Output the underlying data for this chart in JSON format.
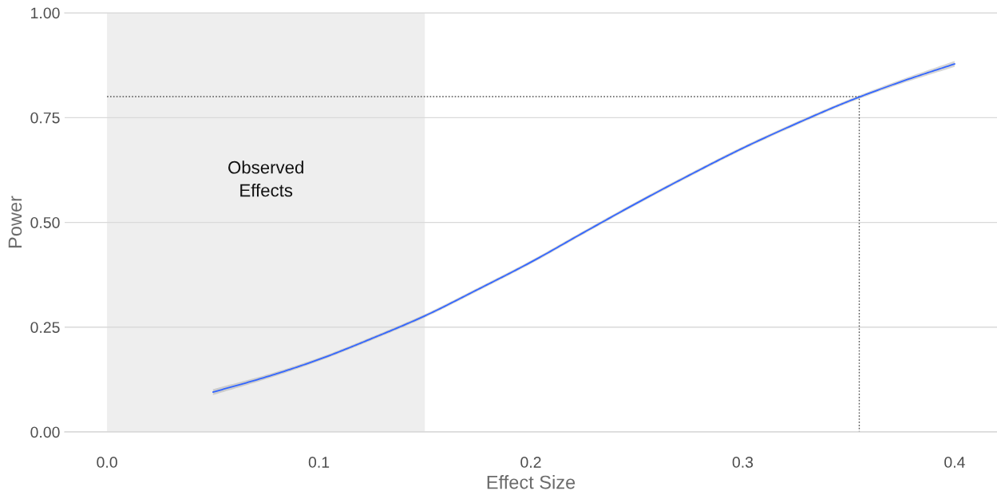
{
  "chart_data": {
    "type": "line",
    "xlabel": "Effect Size",
    "ylabel": "Power",
    "xlim": [
      -0.02,
      0.42
    ],
    "ylim": [
      0,
      1
    ],
    "xticks": [
      {
        "value": 0,
        "label": "0.0"
      },
      0.1,
      0.2,
      0.3,
      0.4
    ],
    "yticks": [
      {
        "value": 0,
        "label": "0.00"
      },
      0.25,
      {
        "value": 0.5,
        "label": "0.50"
      },
      0.75,
      {
        "value": 1,
        "label": "1.00"
      }
    ],
    "grid": "y",
    "bands": [
      {
        "axis": "x",
        "from": 0,
        "to": 0.15,
        "label": "Observed\nEffects",
        "color": "#eeeeee"
      }
    ],
    "series": [
      {
        "color": "#3366ff",
        "x": [
          0.05,
          0.075,
          0.1,
          0.125,
          0.15,
          0.175,
          0.2,
          0.225,
          0.25,
          0.275,
          0.3,
          0.325,
          0.35,
          0.375,
          0.4
        ],
        "values": [
          0.095,
          0.131,
          0.173,
          0.223,
          0.277,
          0.34,
          0.405,
          0.476,
          0.546,
          0.613,
          0.677,
          0.735,
          0.789,
          0.836,
          0.878
        ],
        "lower": [
          0.088,
          0.126,
          0.169,
          0.219,
          0.273,
          0.336,
          0.401,
          0.472,
          0.542,
          0.609,
          0.673,
          0.731,
          0.785,
          0.831,
          0.871
        ],
        "upper": [
          0.102,
          0.136,
          0.177,
          0.227,
          0.281,
          0.344,
          0.409,
          0.48,
          0.55,
          0.617,
          0.681,
          0.739,
          0.793,
          0.841,
          0.885
        ]
      },
      {
        "color": "#555555",
        "line_style": "dotted",
        "x": [
          0,
          0.355,
          0.355
        ],
        "values": [
          0.8,
          0.8,
          0
        ]
      }
    ]
  }
}
